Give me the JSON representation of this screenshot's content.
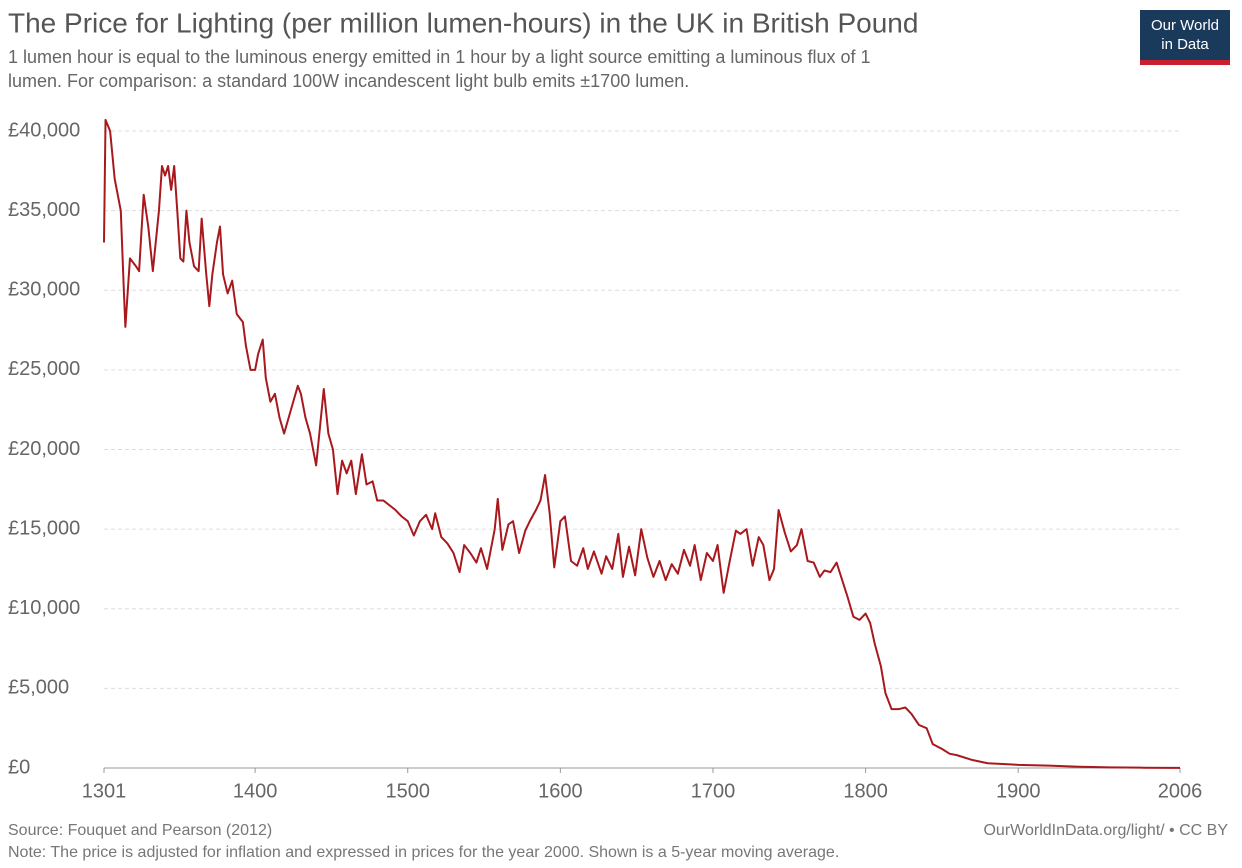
{
  "chart_data": {
    "type": "line",
    "title": "The Price for Lighting (per million lumen-hours) in the UK in British Pound",
    "subtitle_lines": [
      "1 lumen hour is equal to the luminous energy emitted in 1 hour by a light source emitting a luminous flux of 1",
      "lumen. For comparison: a standard 100W incandescent light bulb emits ±1700 lumen."
    ],
    "logo_lines": [
      "Our World",
      "in Data"
    ],
    "source": "Source: Fouquet and Pearson (2012)",
    "url": "OurWorldInData.org/light/ • CC BY",
    "note": "Note: The price is adjusted for inflation and expressed in prices for the year 2000. Shown is a 5-year moving average.",
    "xlim": [
      1301,
      2006
    ],
    "xticks": [
      1301,
      1400,
      1500,
      1600,
      1700,
      1800,
      1900,
      2006
    ],
    "ylim": [
      0,
      40000
    ],
    "yticks": [
      {
        "value": 0,
        "label": "£0"
      },
      {
        "value": 5000,
        "label": "£5,000"
      },
      {
        "value": 10000,
        "label": "£10,000"
      },
      {
        "value": 15000,
        "label": "£15,000"
      },
      {
        "value": 20000,
        "label": "£20,000"
      },
      {
        "value": 25000,
        "label": "£25,000"
      },
      {
        "value": 30000,
        "label": "£30,000"
      },
      {
        "value": 35000,
        "label": "£35,000"
      },
      {
        "value": 40000,
        "label": "£40,000"
      }
    ],
    "grid": true,
    "x": [
      1301,
      1302,
      1305,
      1308,
      1312,
      1314,
      1315,
      1318,
      1322,
      1324,
      1327,
      1330,
      1333,
      1337,
      1339,
      1341,
      1343,
      1345,
      1347,
      1349,
      1351,
      1353,
      1355,
      1357,
      1360,
      1363,
      1365,
      1368,
      1370,
      1372,
      1375,
      1377,
      1379,
      1382,
      1385,
      1388,
      1392,
      1394,
      1397,
      1400,
      1402,
      1405,
      1407,
      1410,
      1413,
      1416,
      1419,
      1422,
      1425,
      1428,
      1430,
      1433,
      1436,
      1440,
      1445,
      1448,
      1451,
      1454,
      1457,
      1460,
      1463,
      1466,
      1470,
      1473,
      1477,
      1480,
      1484,
      1488,
      1492,
      1496,
      1500,
      1504,
      1508,
      1512,
      1516,
      1518,
      1522,
      1526,
      1530,
      1534,
      1537,
      1541,
      1545,
      1548,
      1552,
      1557,
      1559,
      1562,
      1566,
      1569,
      1573,
      1577,
      1580,
      1584,
      1587,
      1590,
      1593,
      1596,
      1600,
      1603,
      1607,
      1611,
      1615,
      1618,
      1622,
      1627,
      1630,
      1634,
      1638,
      1641,
      1645,
      1649,
      1653,
      1657,
      1661,
      1665,
      1669,
      1673,
      1677,
      1681,
      1685,
      1688,
      1692,
      1696,
      1700,
      1703,
      1707,
      1711,
      1715,
      1718,
      1722,
      1726,
      1730,
      1733,
      1737,
      1740,
      1743,
      1747,
      1751,
      1755,
      1758,
      1762,
      1766,
      1770,
      1773,
      1777,
      1781,
      1784,
      1788,
      1792,
      1796,
      1800,
      1803,
      1806,
      1810,
      1813,
      1817,
      1822,
      1826,
      1830,
      1835,
      1840,
      1844,
      1850,
      1855,
      1860,
      1870,
      1880,
      1890,
      1900,
      1920,
      1940,
      1960,
      1980,
      2000,
      2006
    ],
    "series": [
      {
        "name": "United Kingdom",
        "color": "#a8191e",
        "values": [
          33000,
          40700,
          40000,
          37000,
          35000,
          30000,
          27700,
          32000,
          31500,
          31200,
          36000,
          34000,
          31200,
          35000,
          37800,
          37200,
          37800,
          36300,
          37800,
          35000,
          32000,
          31800,
          35000,
          33000,
          31500,
          31200,
          34500,
          31000,
          29000,
          31000,
          33000,
          34000,
          31000,
          29800,
          30600,
          28500,
          28000,
          26500,
          25000,
          25000,
          26000,
          26900,
          24500,
          23000,
          23500,
          22000,
          21000,
          22000,
          23000,
          24000,
          23500,
          22000,
          21000,
          19000,
          23800,
          21000,
          20000,
          17200,
          19300,
          18500,
          19300,
          17200,
          19700,
          17800,
          18000,
          16800,
          16800,
          16500,
          16200,
          15800,
          15500,
          14600,
          15500,
          15900,
          15000,
          16000,
          14500,
          14100,
          13500,
          12300,
          14000,
          13500,
          12900,
          13800,
          12500,
          15000,
          16900,
          13700,
          15300,
          15500,
          13500,
          14900,
          15500,
          16200,
          16800,
          18400,
          16000,
          12600,
          15500,
          15800,
          13000,
          12700,
          13800,
          12500,
          13600,
          12200,
          13300,
          12500,
          14700,
          12000,
          13900,
          12100,
          15000,
          13200,
          12000,
          13000,
          11800,
          12800,
          12200,
          13700,
          12700,
          14000,
          11800,
          13500,
          13000,
          14000,
          11000,
          13000,
          14900,
          14700,
          15000,
          12700,
          14500,
          14000,
          11800,
          12500,
          16200,
          14800,
          13600,
          14000,
          15000,
          13000,
          12900,
          12000,
          12400,
          12300,
          12900,
          12000,
          10800,
          9500,
          9300,
          9700,
          9100,
          7800,
          6400,
          4700,
          3700,
          3700,
          3800,
          3400,
          2700,
          2500,
          1500,
          1200,
          900,
          800,
          500,
          300,
          250,
          200,
          150,
          80,
          40,
          20,
          10,
          10
        ]
      }
    ]
  }
}
